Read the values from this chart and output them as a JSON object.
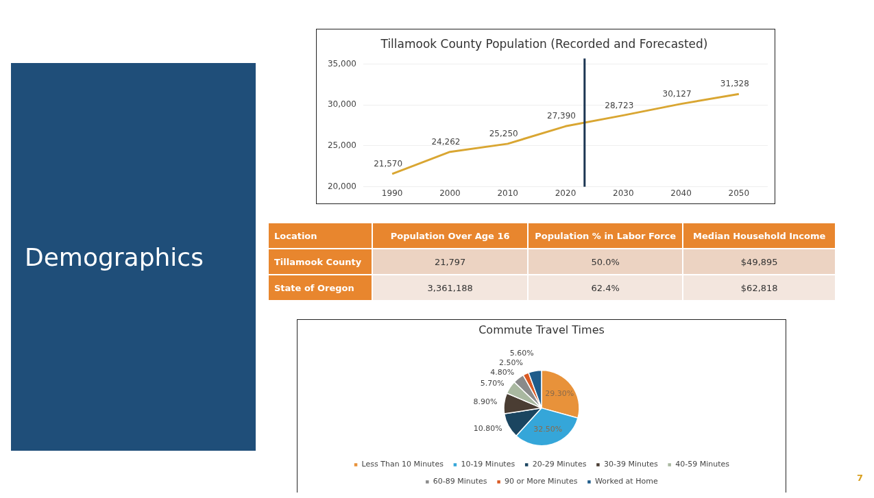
{
  "chart_data": [
    {
      "type": "other",
      "title": "Demographics",
      "annotations": [
        "7"
      ]
    },
    {
      "type": "line",
      "title": "Tillamook County Population (Recorded and Forecasted)",
      "x": [
        1990,
        2000,
        2010,
        2020,
        2030,
        2040,
        2050
      ],
      "series": [
        {
          "color": "#d9a632",
          "values": [
            21570,
            24262,
            25250,
            27390,
            28723,
            30127,
            31328
          ],
          "value_labels": [
            "21,570",
            "24,262",
            "25,250",
            "27,390",
            "28,723",
            "30,127",
            "31,328"
          ]
        }
      ],
      "xlim": [
        1985,
        2055
      ],
      "xticks": [
        1990,
        2000,
        2010,
        2020,
        2030,
        2040,
        2050
      ],
      "ylim": [
        20000,
        35000
      ],
      "yticks": [
        {
          "value": 20000,
          "label": "20,000"
        },
        {
          "value": 25000,
          "label": "25,000"
        },
        {
          "value": 30000,
          "label": "30,000"
        },
        {
          "value": 35000,
          "label": "35,000"
        }
      ],
      "grid": "y",
      "legend": false,
      "marker": "none",
      "line_style": "solid",
      "ref_lines": [
        {
          "axis": "x",
          "value": 2023.3,
          "color": "#1b3552"
        }
      ]
    },
    {
      "type": "other",
      "categories": [
        "Location",
        "Population Over Age 16",
        "Population % in Labor Force",
        "Median Household Income"
      ],
      "cell_labels": [
        [
          "Tillamook County",
          "21,797",
          "50.0%",
          "$49,895"
        ],
        [
          "State of Oregon",
          "3,361,188",
          "62.4%",
          "$62,818"
        ]
      ]
    },
    {
      "type": "pie",
      "title": "Commute Travel Times",
      "categories": [
        "Less Than 10 Minutes",
        "10-19 Minutes",
        "20-29 Minutes",
        "30-39 Minutes",
        "40-59 Minutes",
        "60-89 Minutes",
        "90 or More Minutes",
        "Worked at Home"
      ],
      "values": [
        29.3,
        32.5,
        10.8,
        8.9,
        5.7,
        4.8,
        2.5,
        5.6
      ],
      "value_labels": [
        "29.30%",
        "32.50%",
        "10.80%",
        "8.90%",
        "5.70%",
        "4.80%",
        "2.50%",
        "5.60%"
      ],
      "colors": [
        "#e8923a",
        "#35a6d9",
        "#1b4560",
        "#4a3d33",
        "#a9b8a0",
        "#8a8a8a",
        "#d95a24",
        "#1f5c8a"
      ],
      "legend": "bottom"
    }
  ]
}
